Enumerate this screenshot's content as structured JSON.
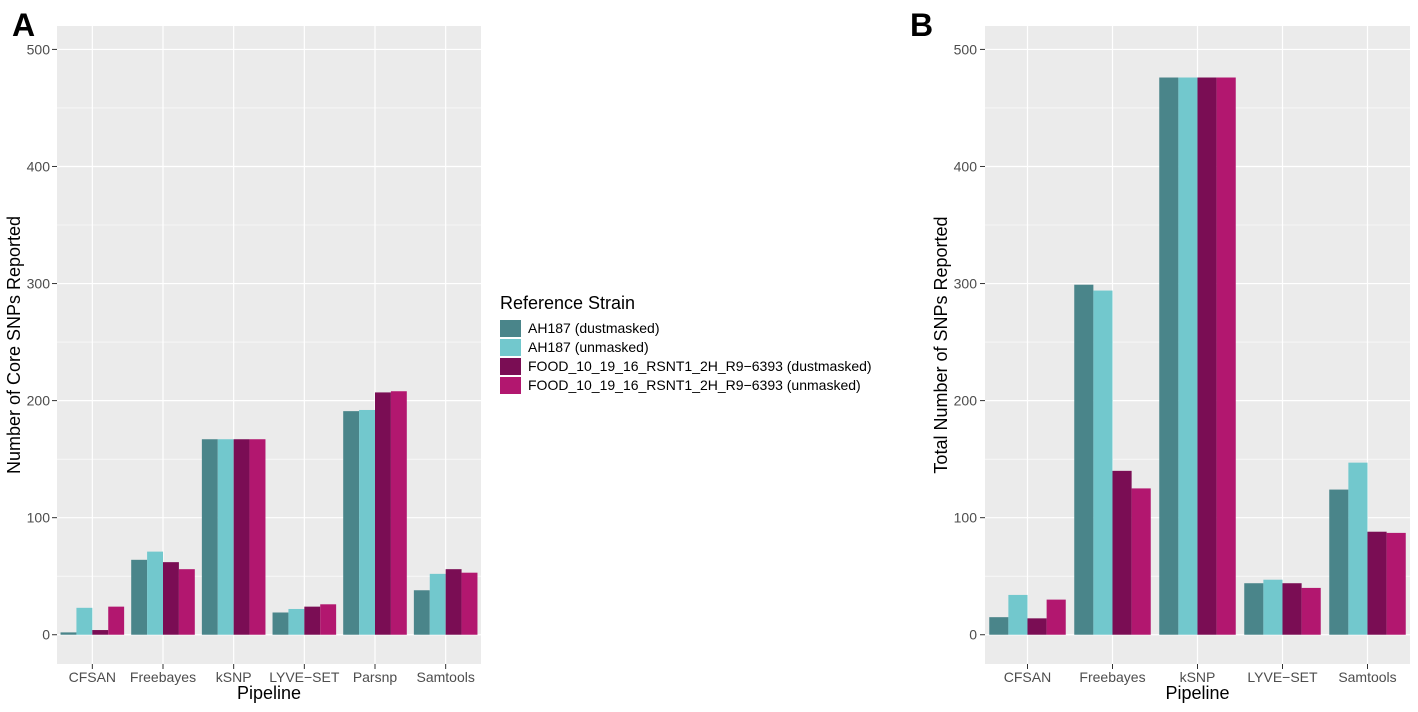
{
  "legend": {
    "title": "Reference Strain",
    "entries": [
      "AH187 (dustmasked)",
      "AH187 (unmasked)",
      "FOOD_10_19_16_RSNT1_2H_R9−6393 (dustmasked)",
      "FOOD_10_19_16_RSNT1_2H_R9−6393 (unmasked)"
    ],
    "colors": [
      "#4a858a",
      "#72c8cd",
      "#7a0d54",
      "#b2176f"
    ]
  },
  "chart_data": [
    {
      "panel": "A",
      "type": "bar",
      "xlabel": "Pipeline",
      "ylabel": "Number of Core SNPs Reported",
      "ylim": [
        -25,
        520
      ],
      "yticks": [
        0,
        100,
        200,
        300,
        400,
        500
      ],
      "grid": true,
      "categories": [
        "CFSAN",
        "Freebayes",
        "kSNP",
        "LYVE−SET",
        "Parsnp",
        "Samtools"
      ],
      "series": [
        {
          "name": "AH187 (dustmasked)",
          "values": [
            2,
            64,
            167,
            19,
            191,
            38
          ]
        },
        {
          "name": "AH187 (unmasked)",
          "values": [
            23,
            71,
            167,
            22,
            192,
            52
          ]
        },
        {
          "name": "FOOD_10_19_16_RSNT1_2H_R9−6393 (dustmasked)",
          "values": [
            4,
            62,
            167,
            24,
            207,
            56
          ]
        },
        {
          "name": "FOOD_10_19_16_RSNT1_2H_R9−6393 (unmasked)",
          "values": [
            24,
            56,
            167,
            26,
            208,
            53
          ]
        }
      ]
    },
    {
      "panel": "B",
      "type": "bar",
      "xlabel": "Pipeline",
      "ylabel": "Total Number of SNPs Reported",
      "ylim": [
        -25,
        520
      ],
      "yticks": [
        0,
        100,
        200,
        300,
        400,
        500
      ],
      "grid": true,
      "categories": [
        "CFSAN",
        "Freebayes",
        "kSNP",
        "LYVE−SET",
        "Samtools"
      ],
      "series": [
        {
          "name": "AH187 (dustmasked)",
          "values": [
            15,
            299,
            476,
            44,
            124
          ]
        },
        {
          "name": "AH187 (unmasked)",
          "values": [
            34,
            294,
            476,
            47,
            147
          ]
        },
        {
          "name": "FOOD_10_19_16_RSNT1_2H_R9−6393 (dustmasked)",
          "values": [
            14,
            140,
            476,
            44,
            88
          ]
        },
        {
          "name": "FOOD_10_19_16_RSNT1_2H_R9−6393 (unmasked)",
          "values": [
            30,
            125,
            476,
            40,
            87
          ]
        }
      ]
    }
  ]
}
